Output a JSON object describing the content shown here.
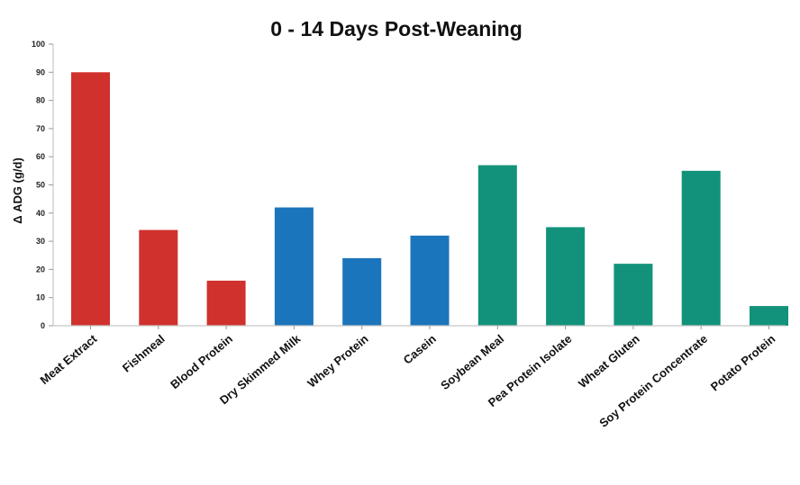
{
  "chart_data": {
    "type": "bar",
    "title": "0 - 14 Days Post-Weaning",
    "xlabel": "",
    "ylabel": "Δ ADG (g/d)",
    "ylim": [
      0,
      100
    ],
    "yticks": [
      0,
      10,
      20,
      30,
      40,
      50,
      60,
      70,
      80,
      90,
      100
    ],
    "grid": false,
    "legend": "none",
    "categories": [
      "Meat Extract",
      "Fishmeal",
      "Blood Protein",
      "Dry Skimmed Milk",
      "Whey Protein",
      "Casein",
      "Soybean Meal",
      "Pea Protein Isolate",
      "Wheat Gluten",
      "Soy Protein Concentrate",
      "Potato Protein"
    ],
    "values": [
      90,
      34,
      16,
      42,
      24,
      32,
      57,
      35,
      22,
      55,
      7
    ],
    "bar_colors": [
      "#d0312d",
      "#d0312d",
      "#d0312d",
      "#1b75bc",
      "#1b75bc",
      "#1b75bc",
      "#12927a",
      "#12927a",
      "#12927a",
      "#12927a",
      "#12927a"
    ]
  }
}
